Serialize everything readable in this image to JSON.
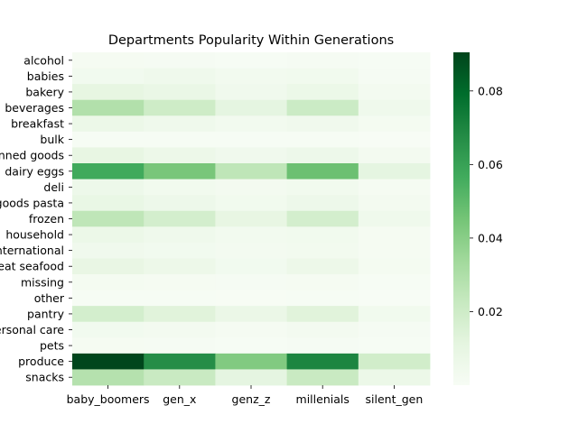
{
  "chart_data": {
    "type": "heatmap",
    "title": "Departments Popularity Within Generations",
    "xlabel": "",
    "ylabel": "",
    "x_categories": [
      "baby_boomers",
      "gen_x",
      "genz_z",
      "millenials",
      "silent_gen"
    ],
    "y_categories": [
      "alcohol",
      "babies",
      "bakery",
      "beverages",
      "breakfast",
      "bulk",
      "canned goods",
      "dairy eggs",
      "deli",
      "dry goods pasta",
      "frozen",
      "household",
      "international",
      "meat seafood",
      "missing",
      "other",
      "pantry",
      "personal care",
      "pets",
      "produce",
      "snacks"
    ],
    "values": [
      [
        0.0015,
        0.0012,
        0.0008,
        0.0012,
        0.0004
      ],
      [
        0.0035,
        0.005,
        0.003,
        0.004,
        0.001
      ],
      [
        0.01,
        0.008,
        0.0045,
        0.007,
        0.0025
      ],
      [
        0.029,
        0.02,
        0.011,
        0.021,
        0.005
      ],
      [
        0.007,
        0.005,
        0.003,
        0.0045,
        0.002
      ],
      [
        0.0008,
        0.0006,
        0.0004,
        0.0005,
        0.0002
      ],
      [
        0.0095,
        0.0065,
        0.0045,
        0.006,
        0.0025
      ],
      [
        0.057,
        0.044,
        0.025,
        0.047,
        0.011
      ],
      [
        0.006,
        0.004,
        0.0025,
        0.004,
        0.0015
      ],
      [
        0.0085,
        0.006,
        0.004,
        0.006,
        0.0025
      ],
      [
        0.025,
        0.018,
        0.0095,
        0.018,
        0.005
      ],
      [
        0.007,
        0.005,
        0.003,
        0.004,
        0.0015
      ],
      [
        0.0045,
        0.0035,
        0.0025,
        0.003,
        0.0015
      ],
      [
        0.009,
        0.0065,
        0.0035,
        0.0065,
        0.002
      ],
      [
        0.002,
        0.0015,
        0.001,
        0.0015,
        0.0005
      ],
      [
        0.0008,
        0.0005,
        0.0003,
        0.0005,
        0.0002
      ],
      [
        0.018,
        0.013,
        0.0075,
        0.013,
        0.004
      ],
      [
        0.0035,
        0.0025,
        0.0015,
        0.0025,
        0.001
      ],
      [
        0.0015,
        0.0012,
        0.0008,
        0.001,
        0.0005
      ],
      [
        0.09,
        0.067,
        0.042,
        0.07,
        0.019
      ],
      [
        0.028,
        0.022,
        0.011,
        0.022,
        0.007
      ]
    ],
    "vmin": 0,
    "vmax": 0.0905,
    "colorbar_ticks": [
      0.02,
      0.04,
      0.06,
      0.08
    ],
    "colorbar_tick_labels": [
      "0.02",
      "0.04",
      "0.06",
      "0.08"
    ],
    "colormap": [
      "#f7fcf5",
      "#e5f5e0",
      "#c7e9c0",
      "#a1d99b",
      "#74c476",
      "#41ab5d",
      "#238b45",
      "#006d2c",
      "#00441b"
    ],
    "grid": false,
    "legend": "colorbar-right"
  }
}
